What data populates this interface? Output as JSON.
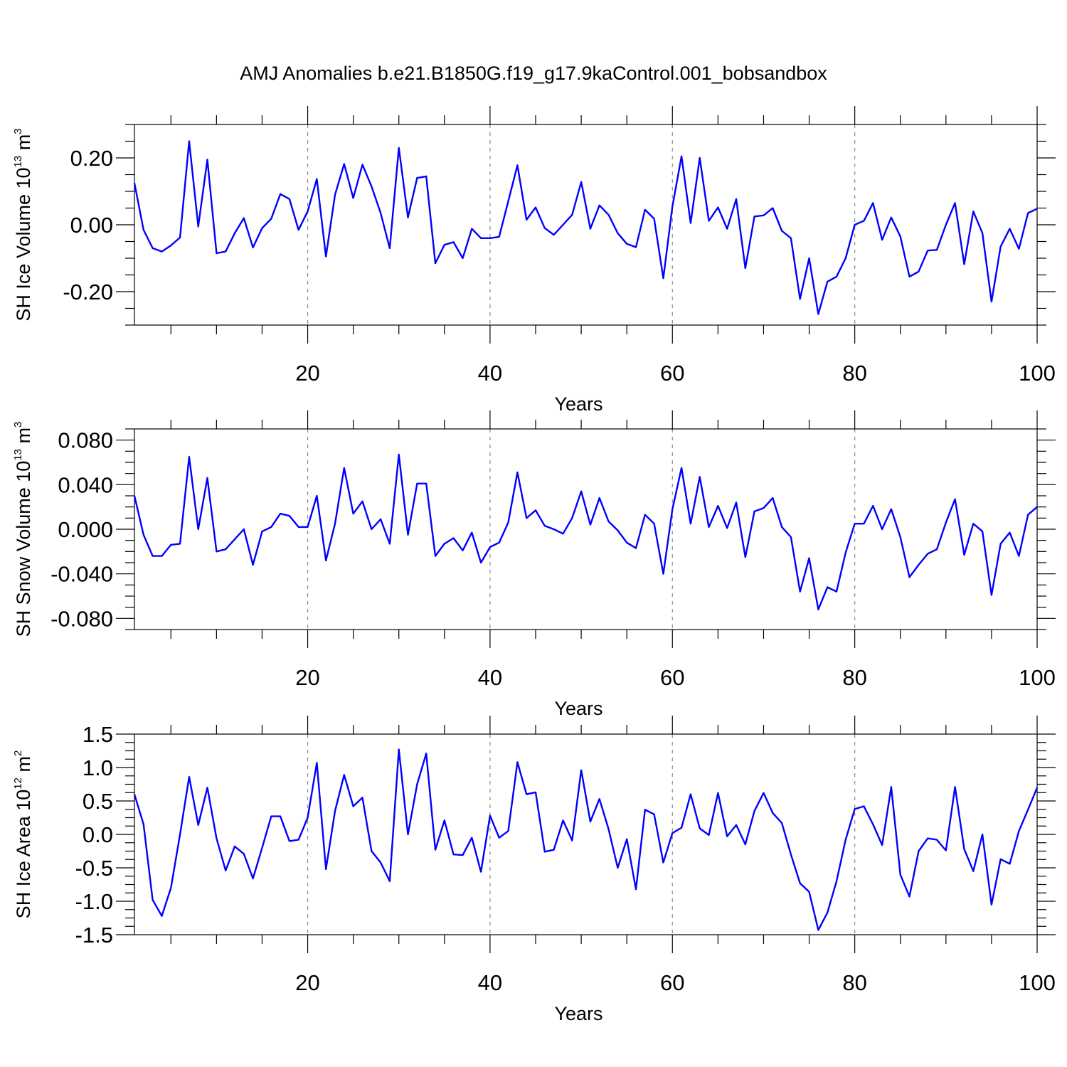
{
  "title": "AMJ Anomalies b.e21.B1850G.f19_g17.9kaControl.001_bobsandbox",
  "chart_data": [
    {
      "type": "line",
      "title": "AMJ Anomalies b.e21.B1850G.f19_g17.9kaControl.001_bobsandbox",
      "xlabel": "Years",
      "ylabel": "SH Ice Volume 10",
      "ylabel_exp": "13",
      "ylabel_unit": " m",
      "ylabel_unit_exp": "3",
      "xlim": [
        1,
        100
      ],
      "ylim": [
        -0.3,
        0.3
      ],
      "xticks": [
        "20",
        "40",
        "60",
        "80",
        "100"
      ],
      "yticks": [
        {
          "v": 0.2,
          "label": "0.20"
        },
        {
          "v": 0.0,
          "label": "0.00"
        },
        {
          "v": -0.2,
          "label": "-0.20"
        }
      ],
      "color": "#0000ff",
      "grid": "x dashed",
      "x": [
        1,
        2,
        3,
        4,
        5,
        6,
        7,
        8,
        9,
        10,
        11,
        12,
        13,
        14,
        15,
        16,
        17,
        18,
        19,
        20,
        21,
        22,
        23,
        24,
        25,
        26,
        27,
        28,
        29,
        30,
        31,
        32,
        33,
        34,
        35,
        36,
        37,
        38,
        39,
        40,
        41,
        42,
        43,
        44,
        45,
        46,
        47,
        48,
        49,
        50,
        51,
        52,
        53,
        54,
        55,
        56,
        57,
        58,
        59,
        60,
        61,
        62,
        63,
        64,
        65,
        66,
        67,
        68,
        69,
        70,
        71,
        72,
        73,
        74,
        75,
        76,
        77,
        78,
        79,
        80,
        81,
        82,
        83,
        84,
        85,
        86,
        87,
        88,
        89,
        90,
        91,
        92,
        93,
        94,
        95,
        96,
        97,
        98,
        99,
        100
      ],
      "values": [
        0.125,
        -0.015,
        -0.07,
        -0.08,
        -0.062,
        -0.038,
        0.25,
        -0.005,
        0.195,
        -0.085,
        -0.08,
        -0.025,
        0.02,
        -0.068,
        -0.01,
        0.018,
        0.092,
        0.077,
        -0.015,
        0.04,
        0.137,
        -0.095,
        0.09,
        0.182,
        0.08,
        0.18,
        0.115,
        0.035,
        -0.07,
        0.23,
        0.022,
        0.14,
        0.145,
        -0.115,
        -0.06,
        -0.052,
        -0.1,
        -0.012,
        -0.04,
        -0.04,
        -0.036,
        0.07,
        0.178,
        0.015,
        0.052,
        -0.01,
        -0.03,
        0.0,
        0.03,
        0.128,
        -0.012,
        0.058,
        0.03,
        -0.025,
        -0.057,
        -0.067,
        0.045,
        0.018,
        -0.16,
        0.055,
        0.205,
        0.005,
        0.2,
        0.012,
        0.052,
        -0.012,
        0.077,
        -0.13,
        0.025,
        0.028,
        0.05,
        -0.018,
        -0.04,
        -0.222,
        -0.1,
        -0.267,
        -0.17,
        -0.155,
        -0.1,
        0.0,
        0.012,
        0.065,
        -0.045,
        0.022,
        -0.035,
        -0.155,
        -0.14,
        -0.077,
        -0.075,
        0.0,
        0.065,
        -0.118,
        0.04,
        -0.025,
        -0.23,
        -0.065,
        -0.012,
        -0.072,
        0.035,
        0.048
      ]
    },
    {
      "type": "line",
      "xlabel": "Years",
      "ylabel": "SH Snow Volume 10",
      "ylabel_exp": "13",
      "ylabel_unit": " m",
      "ylabel_unit_exp": "3",
      "xlim": [
        1,
        100
      ],
      "ylim": [
        -0.09,
        0.09
      ],
      "xticks": [
        "20",
        "40",
        "60",
        "80",
        "100"
      ],
      "yticks": [
        {
          "v": 0.08,
          "label": "0.080"
        },
        {
          "v": 0.04,
          "label": "0.040"
        },
        {
          "v": 0.0,
          "label": "0.000"
        },
        {
          "v": -0.04,
          "label": "-0.040"
        },
        {
          "v": -0.08,
          "label": "-0.080"
        }
      ],
      "color": "#0000ff",
      "grid": "x dashed",
      "x": [
        1,
        2,
        3,
        4,
        5,
        6,
        7,
        8,
        9,
        10,
        11,
        12,
        13,
        14,
        15,
        16,
        17,
        18,
        19,
        20,
        21,
        22,
        23,
        24,
        25,
        26,
        27,
        28,
        29,
        30,
        31,
        32,
        33,
        34,
        35,
        36,
        37,
        38,
        39,
        40,
        41,
        42,
        43,
        44,
        45,
        46,
        47,
        48,
        49,
        50,
        51,
        52,
        53,
        54,
        55,
        56,
        57,
        58,
        59,
        60,
        61,
        62,
        63,
        64,
        65,
        66,
        67,
        68,
        69,
        70,
        71,
        72,
        73,
        74,
        75,
        76,
        77,
        78,
        79,
        80,
        81,
        82,
        83,
        84,
        85,
        86,
        87,
        88,
        89,
        90,
        91,
        92,
        93,
        94,
        95,
        96,
        97,
        98,
        99,
        100
      ],
      "values": [
        0.03,
        -0.005,
        -0.024,
        -0.024,
        -0.014,
        -0.013,
        0.065,
        0.0,
        0.046,
        -0.02,
        -0.018,
        -0.009,
        0.0,
        -0.032,
        -0.002,
        0.002,
        0.014,
        0.012,
        0.002,
        0.002,
        0.03,
        -0.028,
        0.005,
        0.055,
        0.014,
        0.025,
        0.0,
        0.009,
        -0.013,
        0.067,
        -0.005,
        0.041,
        0.041,
        -0.024,
        -0.013,
        -0.008,
        -0.019,
        -0.003,
        -0.03,
        -0.016,
        -0.012,
        0.006,
        0.051,
        0.01,
        0.017,
        0.003,
        0.0,
        -0.004,
        0.01,
        0.034,
        0.004,
        0.028,
        0.007,
        -0.001,
        -0.012,
        -0.017,
        0.013,
        0.005,
        -0.04,
        0.018,
        0.055,
        0.005,
        0.047,
        0.002,
        0.021,
        0.001,
        0.024,
        -0.025,
        0.016,
        0.019,
        0.028,
        0.002,
        -0.007,
        -0.056,
        -0.026,
        -0.072,
        -0.052,
        -0.056,
        -0.021,
        0.005,
        0.005,
        0.021,
        0.0,
        0.018,
        -0.007,
        -0.043,
        -0.032,
        -0.022,
        -0.018,
        0.006,
        0.027,
        -0.023,
        0.005,
        -0.002,
        -0.059,
        -0.013,
        -0.003,
        -0.024,
        0.013,
        0.02
      ]
    },
    {
      "type": "line",
      "xlabel": "Years",
      "ylabel": "SH Ice Area 10",
      "ylabel_exp": "12",
      "ylabel_unit": " m",
      "ylabel_unit_exp": "2",
      "xlim": [
        1,
        100
      ],
      "ylim": [
        -1.5,
        1.5
      ],
      "xticks": [
        "20",
        "40",
        "60",
        "80",
        "100"
      ],
      "yticks": [
        {
          "v": 1.5,
          "label": "1.5"
        },
        {
          "v": 1.0,
          "label": "1.0"
        },
        {
          "v": 0.5,
          "label": "0.5"
        },
        {
          "v": 0.0,
          "label": "0.0"
        },
        {
          "v": -0.5,
          "label": "-0.5"
        },
        {
          "v": -1.0,
          "label": "-1.0"
        },
        {
          "v": -1.5,
          "label": "-1.5"
        }
      ],
      "color": "#0000ff",
      "grid": "x dashed",
      "x": [
        1,
        2,
        3,
        4,
        5,
        6,
        7,
        8,
        9,
        10,
        11,
        12,
        13,
        14,
        15,
        16,
        17,
        18,
        19,
        20,
        21,
        22,
        23,
        24,
        25,
        26,
        27,
        28,
        29,
        30,
        31,
        32,
        33,
        34,
        35,
        36,
        37,
        38,
        39,
        40,
        41,
        42,
        43,
        44,
        45,
        46,
        47,
        48,
        49,
        50,
        51,
        52,
        53,
        54,
        55,
        56,
        57,
        58,
        59,
        60,
        61,
        62,
        63,
        64,
        65,
        66,
        67,
        68,
        69,
        70,
        71,
        72,
        73,
        74,
        75,
        76,
        77,
        78,
        79,
        80,
        81,
        82,
        83,
        84,
        85,
        86,
        87,
        88,
        89,
        90,
        91,
        92,
        93,
        94,
        95,
        96,
        97,
        98,
        99,
        100
      ],
      "values": [
        0.6,
        0.15,
        -0.98,
        -1.22,
        -0.8,
        0.0,
        0.86,
        0.14,
        0.7,
        -0.06,
        -0.54,
        -0.18,
        -0.29,
        -0.66,
        -0.2,
        0.27,
        0.27,
        -0.1,
        -0.08,
        0.25,
        1.07,
        -0.52,
        0.35,
        0.89,
        0.42,
        0.55,
        -0.25,
        -0.42,
        -0.7,
        1.27,
        0.0,
        0.75,
        1.21,
        -0.23,
        0.21,
        -0.3,
        -0.31,
        -0.05,
        -0.56,
        0.28,
        -0.05,
        0.05,
        1.08,
        0.6,
        0.63,
        -0.26,
        -0.23,
        0.21,
        -0.09,
        0.96,
        0.19,
        0.53,
        0.08,
        -0.5,
        -0.07,
        -0.82,
        0.37,
        0.3,
        -0.42,
        0.02,
        0.1,
        0.6,
        0.09,
        -0.01,
        0.62,
        -0.03,
        0.14,
        -0.15,
        0.35,
        0.62,
        0.32,
        0.17,
        -0.3,
        -0.73,
        -0.86,
        -1.43,
        -1.17,
        -0.7,
        -0.08,
        0.38,
        0.42,
        0.15,
        -0.16,
        0.71,
        -0.6,
        -0.93,
        -0.25,
        -0.06,
        -0.08,
        -0.24,
        0.71,
        -0.22,
        -0.55,
        0.0,
        -1.05,
        -0.37,
        -0.44,
        0.05,
        0.37,
        0.7
      ]
    }
  ]
}
